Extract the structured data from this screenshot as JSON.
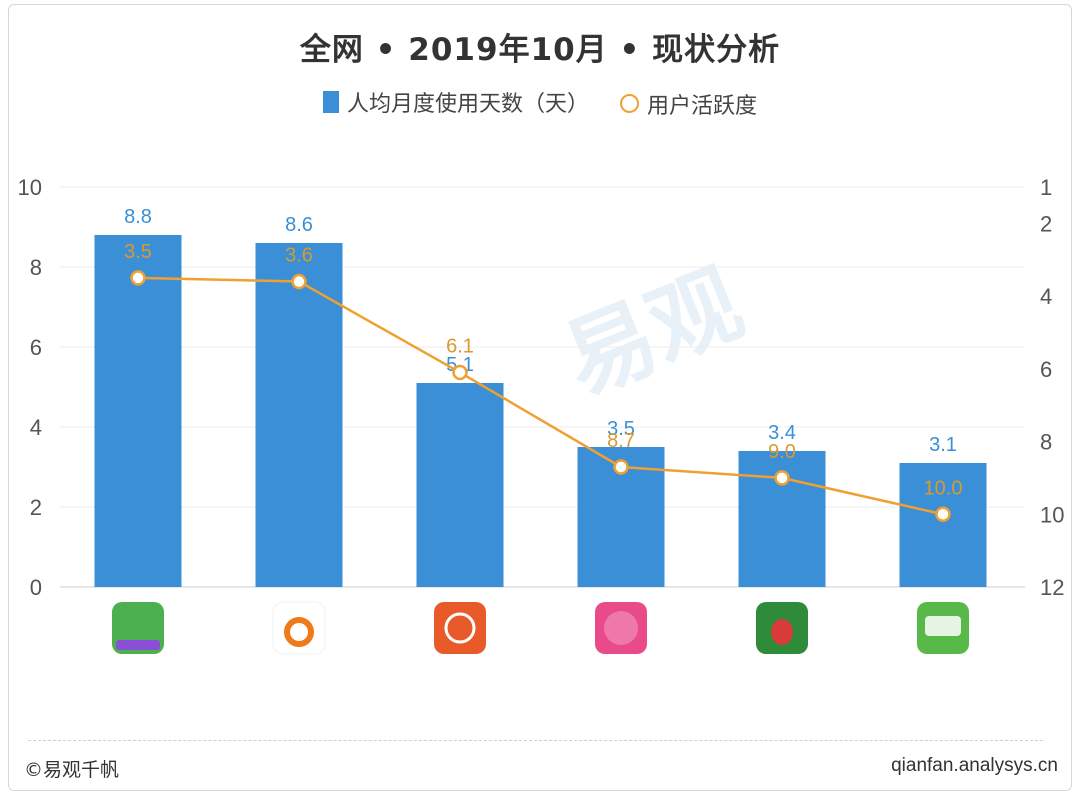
{
  "chart_data": {
    "type": "bar",
    "title": "全网 • 2019年10月 • 现状分析",
    "categories": [
      "",
      "",
      "",
      "",
      "",
      ""
    ],
    "series": [
      {
        "name": "人均月度使用天数（天）",
        "type": "bar",
        "axis": "left",
        "values": [
          8.8,
          8.6,
          5.1,
          3.5,
          3.4,
          3.1
        ],
        "color": "#3a8fd6"
      },
      {
        "name": "用户活跃度",
        "type": "line",
        "axis": "right",
        "values": [
          3.5,
          3.6,
          6.1,
          8.7,
          9.0,
          10.0
        ],
        "color": "#f0a030"
      }
    ],
    "left_axis": {
      "ticks": [
        "10",
        "8",
        "6",
        "4",
        "2",
        "0"
      ],
      "ylim": [
        0,
        10
      ]
    },
    "right_axis": {
      "ticks": [
        "1",
        "2",
        "4",
        "6",
        "8",
        "10",
        "12"
      ],
      "ylim": [
        1,
        12
      ],
      "inverted": true
    },
    "legend_position": "top-center",
    "grid": true
  },
  "apps": [
    {
      "icon": "app-icon-green-grocery",
      "color": "#4caf50"
    },
    {
      "icon": "app-icon-orange-flame",
      "color": "#f07a1a"
    },
    {
      "icon": "app-icon-orange-circle",
      "color": "#e85a2a"
    },
    {
      "icon": "app-icon-pink-fresh",
      "color": "#e94b8a"
    },
    {
      "icon": "app-icon-green-radish",
      "color": "#2e8b3a"
    },
    {
      "icon": "app-icon-green-farm",
      "color": "#58b848"
    }
  ],
  "footer": {
    "left": "©易观千帆",
    "right": "qianfan.analysys.cn"
  },
  "watermark": "易观"
}
